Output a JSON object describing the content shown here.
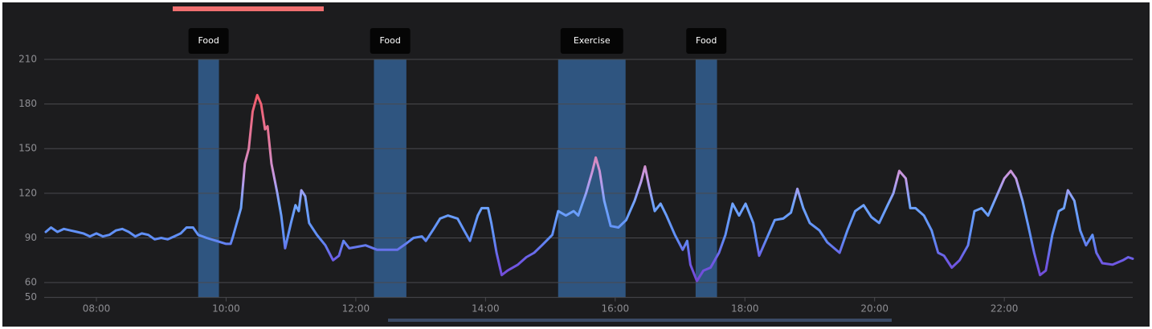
{
  "chart_data": {
    "type": "line",
    "x": [
      7.22,
      7.3,
      7.4,
      7.5,
      7.6,
      7.7,
      7.8,
      7.9,
      8.0,
      8.1,
      8.2,
      8.3,
      8.4,
      8.5,
      8.6,
      8.7,
      8.8,
      8.9,
      9.0,
      9.1,
      9.2,
      9.3,
      9.39,
      9.49,
      9.57,
      9.7,
      9.85,
      10.0,
      10.07,
      10.1,
      10.23,
      10.29,
      10.35,
      10.41,
      10.48,
      10.54,
      10.6,
      10.64,
      10.7,
      10.79,
      10.85,
      10.91,
      11.0,
      11.07,
      11.12,
      11.16,
      11.22,
      11.28,
      11.4,
      11.53,
      11.65,
      11.74,
      11.81,
      11.9,
      12.02,
      12.15,
      12.33,
      12.64,
      12.77,
      12.89,
      13.02,
      13.08,
      13.2,
      13.3,
      13.42,
      13.57,
      13.67,
      13.76,
      13.88,
      13.94,
      14.04,
      14.09,
      14.17,
      14.25,
      14.34,
      14.5,
      14.63,
      14.75,
      14.87,
      15.03,
      15.12,
      15.24,
      15.36,
      15.43,
      15.55,
      15.65,
      15.7,
      15.76,
      15.83,
      15.93,
      16.05,
      16.17,
      16.3,
      16.4,
      16.46,
      16.52,
      16.61,
      16.7,
      16.79,
      16.92,
      17.04,
      17.11,
      17.16,
      17.26,
      17.36,
      17.47,
      17.6,
      17.7,
      17.81,
      17.91,
      18.01,
      18.13,
      18.22,
      18.34,
      18.46,
      18.59,
      18.71,
      18.81,
      18.9,
      19.0,
      19.15,
      19.27,
      19.46,
      19.58,
      19.7,
      19.83,
      19.95,
      20.07,
      20.2,
      20.29,
      20.38,
      20.48,
      20.55,
      20.63,
      20.76,
      20.88,
      20.98,
      21.07,
      21.19,
      21.31,
      21.44,
      21.54,
      21.65,
      21.75,
      21.88,
      22.0,
      22.1,
      22.18,
      22.28,
      22.37,
      22.46,
      22.55,
      22.64,
      22.74,
      22.84,
      22.92,
      22.98,
      23.08,
      23.17,
      23.26,
      23.36,
      23.42,
      23.51,
      23.67,
      23.83,
      23.91,
      23.98
    ],
    "values": [
      94,
      97,
      94,
      96,
      95,
      94,
      93,
      91,
      93,
      91,
      92,
      95,
      96,
      94,
      91,
      93,
      92,
      89,
      90,
      89,
      91,
      93,
      97,
      97,
      92,
      90,
      88,
      86,
      86,
      90,
      110,
      140,
      150,
      175,
      186,
      180,
      163,
      165,
      140,
      120,
      105,
      83,
      100,
      112,
      108,
      122,
      118,
      100,
      92,
      85,
      75,
      78,
      88,
      83,
      84,
      85,
      82,
      82,
      86,
      90,
      91,
      88,
      96,
      103,
      105,
      103,
      95,
      88,
      105,
      110,
      110,
      100,
      80,
      65,
      68,
      72,
      77,
      80,
      85,
      92,
      108,
      105,
      108,
      105,
      120,
      135,
      144,
      135,
      115,
      98,
      97,
      102,
      115,
      128,
      138,
      125,
      108,
      113,
      105,
      92,
      82,
      88,
      72,
      61,
      68,
      70,
      80,
      92,
      113,
      105,
      113,
      100,
      78,
      90,
      102,
      103,
      107,
      123,
      110,
      100,
      95,
      87,
      80,
      95,
      108,
      112,
      104,
      100,
      112,
      120,
      135,
      130,
      110,
      110,
      105,
      95,
      80,
      78,
      70,
      75,
      85,
      108,
      110,
      105,
      118,
      130,
      135,
      130,
      115,
      98,
      80,
      65,
      68,
      92,
      108,
      110,
      122,
      115,
      95,
      85,
      92,
      80,
      73,
      72,
      75,
      77,
      76
    ],
    "xlim": [
      7.195,
      23.98
    ],
    "xticks": [
      {
        "value": 8,
        "label": "08:00"
      },
      {
        "value": 10,
        "label": "10:00"
      },
      {
        "value": 12,
        "label": "12:00"
      },
      {
        "value": 14,
        "label": "14:00"
      },
      {
        "value": 16,
        "label": "16:00"
      },
      {
        "value": 18,
        "label": "18:00"
      },
      {
        "value": 20,
        "label": "20:00"
      },
      {
        "value": 22,
        "label": "22:00"
      }
    ],
    "ylim": [
      50,
      210
    ],
    "yticks": [
      50,
      60,
      90,
      120,
      150,
      180,
      210
    ],
    "grid": true,
    "annotations": [
      {
        "label": "Food",
        "start": 9.57,
        "end": 9.89
      },
      {
        "label": "Food",
        "start": 12.28,
        "end": 12.78
      },
      {
        "label": "Exercise",
        "start": 15.12,
        "end": 16.16
      },
      {
        "label": "Food",
        "start": 17.24,
        "end": 17.57
      }
    ],
    "band_color": "#2f5580",
    "color_scale": [
      {
        "value": 185,
        "color": "#f25c6c"
      },
      {
        "value": 150,
        "color": "#e07fa8"
      },
      {
        "value": 130,
        "color": "#c49ae6"
      },
      {
        "value": 112,
        "color": "#6ea4ff"
      },
      {
        "value": 90,
        "color": "#5f8df5"
      },
      {
        "value": 75,
        "color": "#6e5be6"
      },
      {
        "value": 60,
        "color": "#7446d2"
      }
    ]
  }
}
